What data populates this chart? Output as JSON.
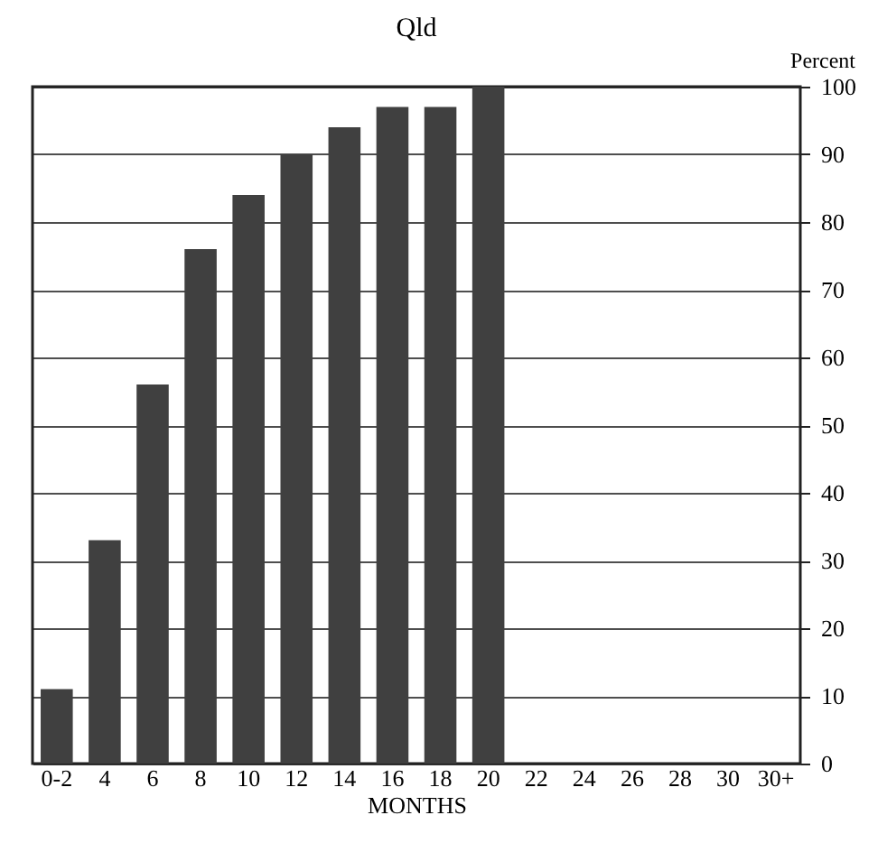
{
  "chart_data": {
    "type": "bar",
    "title": "Qld",
    "xlabel": "MONTHS",
    "ylabel": "Percent",
    "categories": [
      "0-2",
      "4",
      "6",
      "8",
      "10",
      "12",
      "14",
      "16",
      "18",
      "20",
      "22",
      "24",
      "26",
      "28",
      "30",
      "30+"
    ],
    "values": [
      11,
      33,
      56,
      76,
      84,
      90,
      94,
      97,
      97,
      100,
      null,
      null,
      null,
      null,
      null,
      null
    ],
    "color": "#404040",
    "ylim": [
      0,
      100
    ],
    "yticks": [
      0,
      10,
      20,
      30,
      40,
      50,
      60,
      70,
      80,
      90,
      100
    ],
    "grid": "y"
  }
}
